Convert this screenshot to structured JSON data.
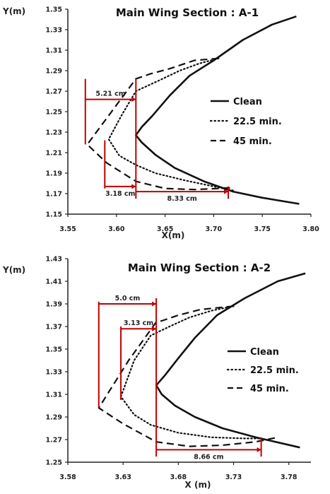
{
  "chart_data": [
    {
      "type": "line",
      "title": "Main Wing Section : A-1",
      "xlabel": "X(m)",
      "ylabel": "Y(m)",
      "xlim": [
        3.55,
        3.8
      ],
      "ylim": [
        1.15,
        1.35
      ],
      "xticks": [
        "3.55",
        "3.60",
        "3.65",
        "3.70",
        "3.75",
        "3.80"
      ],
      "yticks": [
        "1.15",
        "1.17",
        "1.19",
        "1.21",
        "1.23",
        "1.25",
        "1.27",
        "1.29",
        "1.31",
        "1.33",
        "1.35"
      ],
      "legend_position": "right",
      "series": [
        {
          "name": "Clean",
          "style": "solid",
          "points": [
            [
              3.785,
              1.343
            ],
            [
              3.76,
              1.335
            ],
            [
              3.73,
              1.32
            ],
            [
              3.7,
              1.3
            ],
            [
              3.675,
              1.285
            ],
            [
              3.655,
              1.266
            ],
            [
              3.637,
              1.246
            ],
            [
              3.626,
              1.235
            ],
            [
              3.62,
              1.227
            ],
            [
              3.626,
              1.22
            ],
            [
              3.64,
              1.208
            ],
            [
              3.66,
              1.195
            ],
            [
              3.69,
              1.182
            ],
            [
              3.72,
              1.172
            ],
            [
              3.75,
              1.166
            ],
            [
              3.788,
              1.16
            ]
          ]
        },
        {
          "name": "22.5 min.",
          "style": "dotted",
          "points": [
            [
              3.705,
              1.302
            ],
            [
              3.685,
              1.297
            ],
            [
              3.665,
              1.29
            ],
            [
              3.645,
              1.281
            ],
            [
              3.62,
              1.27
            ],
            [
              3.605,
              1.246
            ],
            [
              3.592,
              1.223
            ],
            [
              3.603,
              1.207
            ],
            [
              3.62,
              1.198
            ],
            [
              3.64,
              1.19
            ],
            [
              3.67,
              1.183
            ],
            [
              3.7,
              1.177
            ],
            [
              3.72,
              1.173
            ]
          ]
        },
        {
          "name": "45 min.",
          "style": "dashed",
          "points": [
            [
              3.705,
              1.302
            ],
            [
              3.68,
              1.3
            ],
            [
              3.655,
              1.292
            ],
            [
              3.635,
              1.287
            ],
            [
              3.62,
              1.282
            ],
            [
              3.595,
              1.25
            ],
            [
              3.57,
              1.218
            ],
            [
              3.59,
              1.2
            ],
            [
              3.62,
              1.182
            ],
            [
              3.65,
              1.175
            ],
            [
              3.68,
              1.174
            ],
            [
              3.705,
              1.175
            ],
            [
              3.72,
              1.176
            ]
          ]
        }
      ],
      "annotations": [
        {
          "text": "5.21 cm",
          "from": [
            3.568,
            1.262
          ],
          "to": [
            3.62,
            1.262
          ]
        },
        {
          "text": "3.18 cm",
          "from": [
            3.588,
            1.177
          ],
          "to": [
            3.62,
            1.177
          ]
        },
        {
          "text": "8.33 cm",
          "from": [
            3.62,
            1.172
          ],
          "to": [
            3.715,
            1.172
          ]
        }
      ],
      "vertical_markers": [
        {
          "x": 3.568,
          "y": [
            1.218,
            1.282
          ]
        },
        {
          "x": 3.588,
          "y": [
            1.175,
            1.222
          ]
        },
        {
          "x": 3.62,
          "y": [
            1.165,
            1.282
          ]
        },
        {
          "x": 3.715,
          "y": [
            1.165,
            1.177
          ]
        }
      ]
    },
    {
      "type": "line",
      "title": "Main Wing Section : A-2",
      "xlabel": "X (m)",
      "ylabel": "Y(m)",
      "xlim": [
        3.58,
        3.8
      ],
      "ylim": [
        1.25,
        1.43
      ],
      "xticks": [
        "3.58",
        "3.63",
        "3.68",
        "3.73",
        "3.78"
      ],
      "yticks": [
        "1.25",
        "1.27",
        "1.29",
        "1.31",
        "1.33",
        "1.35",
        "1.37",
        "1.39",
        "1.41",
        "1.43"
      ],
      "legend_position": "right",
      "series": [
        {
          "name": "Clean",
          "style": "solid",
          "points": [
            [
              3.795,
              1.417
            ],
            [
              3.77,
              1.41
            ],
            [
              3.74,
              1.395
            ],
            [
              3.715,
              1.38
            ],
            [
              3.695,
              1.36
            ],
            [
              3.68,
              1.342
            ],
            [
              3.668,
              1.327
            ],
            [
              3.66,
              1.318
            ],
            [
              3.665,
              1.31
            ],
            [
              3.677,
              1.3
            ],
            [
              3.695,
              1.29
            ],
            [
              3.72,
              1.28
            ],
            [
              3.75,
              1.272
            ],
            [
              3.79,
              1.263
            ]
          ]
        },
        {
          "name": "22.5 min.",
          "style": "dotted",
          "points": [
            [
              3.73,
              1.388
            ],
            [
              3.71,
              1.384
            ],
            [
              3.69,
              1.378
            ],
            [
              3.672,
              1.37
            ],
            [
              3.655,
              1.362
            ],
            [
              3.64,
              1.34
            ],
            [
              3.628,
              1.308
            ],
            [
              3.64,
              1.292
            ],
            [
              3.655,
              1.283
            ],
            [
              3.68,
              1.276
            ],
            [
              3.71,
              1.272
            ],
            [
              3.74,
              1.271
            ],
            [
              3.755,
              1.271
            ]
          ]
        },
        {
          "name": "45 min.",
          "style": "dashed",
          "points": [
            [
              3.73,
              1.388
            ],
            [
              3.7,
              1.385
            ],
            [
              3.68,
              1.38
            ],
            [
              3.665,
              1.375
            ],
            [
              3.66,
              1.374
            ],
            [
              3.635,
              1.34
            ],
            [
              3.608,
              1.298
            ],
            [
              3.63,
              1.284
            ],
            [
              3.66,
              1.268
            ],
            [
              3.69,
              1.264
            ],
            [
              3.72,
              1.265
            ],
            [
              3.75,
              1.268
            ],
            [
              3.77,
              1.272
            ]
          ]
        }
      ],
      "annotations": [
        {
          "text": "5.0 cm",
          "from": [
            3.608,
            1.39
          ],
          "to": [
            3.66,
            1.39
          ]
        },
        {
          "text": "3.13 cm",
          "from": [
            3.628,
            1.368
          ],
          "to": [
            3.66,
            1.368
          ]
        },
        {
          "text": "8.66 cm",
          "from": [
            3.66,
            1.261
          ],
          "to": [
            3.755,
            1.261
          ]
        }
      ],
      "vertical_markers": [
        {
          "x": 3.608,
          "y": [
            1.298,
            1.392
          ]
        },
        {
          "x": 3.628,
          "y": [
            1.305,
            1.37
          ]
        },
        {
          "x": 3.66,
          "y": [
            1.255,
            1.395
          ]
        },
        {
          "x": 3.755,
          "y": [
            1.255,
            1.272
          ]
        }
      ]
    }
  ]
}
